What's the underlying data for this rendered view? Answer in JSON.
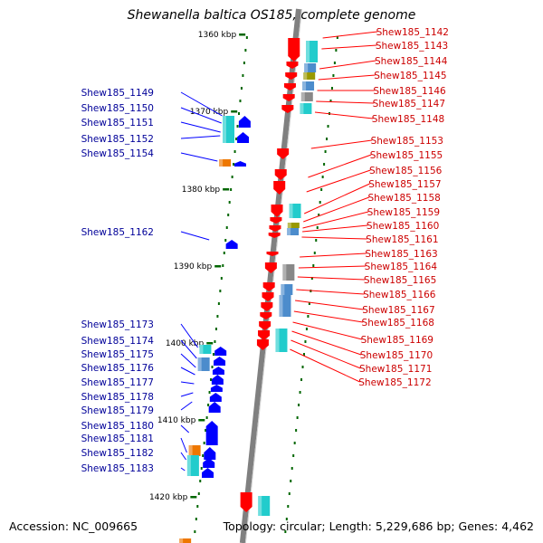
{
  "title": "Shewanella baltica OS185, complete genome",
  "footer": {
    "accession": "Accession: NC_009665",
    "topology": "Topology: circular; Length: 5,229,686 bp; Genes: 4,462"
  },
  "kbp_labels": [
    "1360 kbp",
    "1370 kbp",
    "1380 kbp",
    "1390 kbp",
    "1400 kbp",
    "1410 kbp",
    "1420 kbp"
  ],
  "colors": {
    "forward_gene": "#ff0000",
    "reverse_gene": "#0000ff",
    "forward_label": "#cc0000",
    "reverse_label": "#000099",
    "backbone": "#808080",
    "cds_cyan": "#22cccc",
    "cds_steel": "#4c8ccc",
    "cds_gray": "#888888",
    "cds_olive": "#999900",
    "cds_orange": "#ee7700",
    "tick_green": "#006600"
  },
  "forward_genes": [
    "Shew185_1142",
    "Shew185_1143",
    "Shew185_1144",
    "Shew185_1145",
    "Shew185_1146",
    "Shew185_1147",
    "Shew185_1148",
    "Shew185_1153",
    "Shew185_1155",
    "Shew185_1156",
    "Shew185_1157",
    "Shew185_1158",
    "Shew185_1159",
    "Shew185_1160",
    "Shew185_1161",
    "Shew185_1163",
    "Shew185_1164",
    "Shew185_1165",
    "Shew185_1166",
    "Shew185_1167",
    "Shew185_1168",
    "Shew185_1169",
    "Shew185_1170",
    "Shew185_1171",
    "Shew185_1172"
  ],
  "reverse_genes": [
    "Shew185_1149",
    "Shew185_1150",
    "Shew185_1151",
    "Shew185_1152",
    "Shew185_1154",
    "Shew185_1162",
    "Shew185_1173",
    "Shew185_1174",
    "Shew185_1175",
    "Shew185_1176",
    "Shew185_1177",
    "Shew185_1178",
    "Shew185_1179",
    "Shew185_1180",
    "Shew185_1181",
    "Shew185_1182",
    "Shew185_1183"
  ]
}
